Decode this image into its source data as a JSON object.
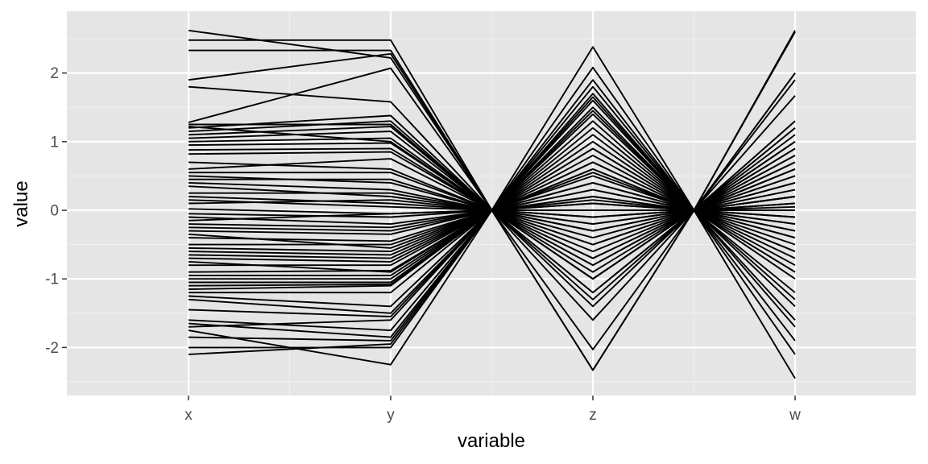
{
  "chart_data": {
    "type": "line",
    "title": "",
    "xlabel": "variable",
    "ylabel": "value",
    "categories": [
      "x",
      "y",
      "z",
      "w"
    ],
    "ylim": [
      -2.7,
      2.9
    ],
    "yticks": [
      -2,
      -1,
      0,
      1,
      2
    ],
    "ytick_labels": [
      "-2",
      "-1",
      "0",
      "1",
      "2"
    ],
    "grid": true,
    "legend": "none",
    "colors": {
      "panel": "#e5e5e5",
      "grid_major": "#ffffff",
      "grid_minor": "#f0f0f0",
      "line": "#000000",
      "tick_text": "#4d4d4d"
    },
    "series": [
      {
        "values": [
          2.62,
          2.22,
          -2.33,
          0.2
        ]
      },
      {
        "values": [
          2.48,
          2.48,
          0.55,
          -0.1
        ]
      },
      {
        "values": [
          2.33,
          2.33,
          1.8,
          0.05
        ]
      },
      {
        "values": [
          1.9,
          2.28,
          0.1,
          -0.2
        ]
      },
      {
        "values": [
          1.8,
          1.58,
          -0.3,
          0.1
        ]
      },
      {
        "values": [
          1.28,
          2.07,
          2.08,
          2.6
        ]
      },
      {
        "values": [
          1.25,
          1.25,
          -1.0,
          0.4
        ]
      },
      {
        "values": [
          1.2,
          1.38,
          -0.5,
          1.2
        ]
      },
      {
        "values": [
          1.15,
          1.3,
          1.6,
          0.8
        ]
      },
      {
        "values": [
          1.1,
          1.22,
          -2.33,
          0.6
        ]
      },
      {
        "values": [
          1.05,
          1.15,
          0.7,
          -0.4
        ]
      },
      {
        "values": [
          1.0,
          1.05,
          -0.2,
          1.0
        ]
      },
      {
        "values": [
          0.95,
          0.98,
          1.2,
          2.0
        ]
      },
      {
        "values": [
          0.88,
          0.9,
          0.3,
          -0.9
        ]
      },
      {
        "values": [
          0.82,
          0.85,
          -0.8,
          0.3
        ]
      },
      {
        "values": [
          0.6,
          0.75,
          0.9,
          -0.6
        ]
      },
      {
        "values": [
          0.55,
          0.55,
          1.4,
          0.2
        ]
      },
      {
        "values": [
          0.5,
          0.4,
          -0.4,
          1.3
        ]
      },
      {
        "values": [
          0.45,
          0.45,
          0.2,
          0.7
        ]
      },
      {
        "values": [
          0.4,
          0.3,
          -1.2,
          -0.3
        ]
      },
      {
        "values": [
          0.35,
          0.2,
          0.6,
          0.9
        ]
      },
      {
        "values": [
          0.25,
          0.25,
          1.0,
          -1.2
        ]
      },
      {
        "values": [
          0.2,
          0.1,
          -0.6,
          0.1
        ]
      },
      {
        "values": [
          0.15,
          0.05,
          0.4,
          0.5
        ]
      },
      {
        "values": [
          0.02,
          -0.05,
          -0.1,
          -0.7
        ]
      },
      {
        "values": [
          -0.05,
          -0.1,
          2.38,
          0.0
        ]
      },
      {
        "values": [
          -0.1,
          -0.2,
          -0.9,
          1.1
        ]
      },
      {
        "values": [
          -0.2,
          -0.25,
          0.8,
          -0.5
        ]
      },
      {
        "values": [
          -0.25,
          -0.3,
          -0.3,
          0.6
        ]
      },
      {
        "values": [
          -0.3,
          -0.35,
          1.9,
          -1.7
        ]
      },
      {
        "values": [
          -0.4,
          -0.45,
          0.1,
          0.3
        ]
      },
      {
        "values": [
          -0.5,
          -0.5,
          -1.4,
          -0.2
        ]
      },
      {
        "values": [
          -0.55,
          -0.6,
          0.5,
          1.67
        ]
      },
      {
        "values": [
          -0.6,
          -0.65,
          -0.7,
          -1.0
        ]
      },
      {
        "values": [
          -0.65,
          -0.7,
          1.5,
          0.4
        ]
      },
      {
        "values": [
          -0.7,
          -0.75,
          -1.6,
          -0.8
        ]
      },
      {
        "values": [
          -0.8,
          -0.8,
          0.3,
          0.9
        ]
      },
      {
        "values": [
          -0.9,
          -0.88,
          -0.2,
          -1.4
        ]
      },
      {
        "values": [
          -0.95,
          -0.95,
          1.1,
          0.2
        ]
      },
      {
        "values": [
          -1.0,
          -1.0,
          -2.03,
          2.62
        ]
      },
      {
        "values": [
          -1.05,
          -1.05,
          0.6,
          -2.45
        ]
      },
      {
        "values": [
          -1.1,
          -1.08,
          -1.0,
          0.7
        ]
      },
      {
        "values": [
          -1.15,
          -1.1,
          0.0,
          -0.3
        ]
      },
      {
        "values": [
          -1.2,
          -1.2,
          1.7,
          1.2
        ]
      },
      {
        "values": [
          -1.25,
          -1.4,
          -0.5,
          -1.9
        ]
      },
      {
        "values": [
          -1.3,
          -1.5,
          0.9,
          0.5
        ]
      },
      {
        "values": [
          -1.45,
          -1.55,
          -1.2,
          -2.1
        ]
      },
      {
        "values": [
          -1.6,
          -1.75,
          0.4,
          -0.1
        ]
      },
      {
        "values": [
          -1.65,
          -1.85,
          -0.8,
          1.0
        ]
      },
      {
        "values": [
          -1.7,
          -1.6,
          1.3,
          -1.6
        ]
      },
      {
        "values": [
          -1.75,
          -2.25,
          -0.3,
          0.2
        ]
      },
      {
        "values": [
          -1.85,
          -1.9,
          0.7,
          -0.9
        ]
      },
      {
        "values": [
          -2.0,
          -2.0,
          -1.3,
          0.8
        ]
      },
      {
        "values": [
          -2.1,
          -1.95,
          0.2,
          -0.4
        ]
      },
      {
        "values": [
          1.22,
          1.0,
          -0.1,
          1.9
        ]
      },
      {
        "values": [
          0.7,
          0.6,
          -1.0,
          2.0
        ]
      },
      {
        "values": [
          0.1,
          0.15,
          1.45,
          -0.6
        ]
      },
      {
        "values": [
          -0.15,
          -0.05,
          -0.7,
          1.3
        ]
      },
      {
        "values": [
          -0.35,
          -0.55,
          0.15,
          -1.3
        ]
      },
      {
        "values": [
          -0.75,
          -0.9,
          1.65,
          0.6
        ]
      }
    ]
  }
}
